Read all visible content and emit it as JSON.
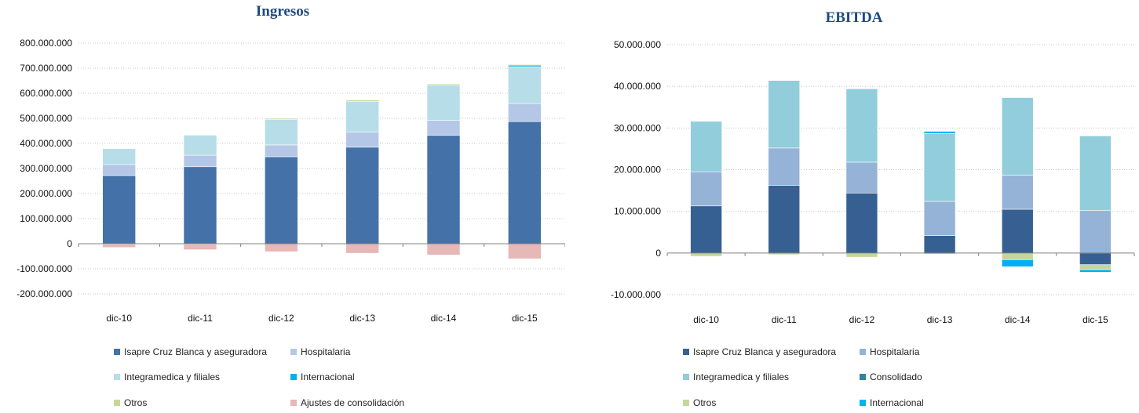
{
  "chart_data": [
    {
      "type": "bar",
      "stacked": true,
      "title": "Ingresos",
      "categories": [
        "dic-10",
        "dic-11",
        "dic-12",
        "dic-13",
        "dic-14",
        "dic-15"
      ],
      "ylim": [
        -200000000,
        800000000
      ],
      "yticks": [
        800000000,
        700000000,
        600000000,
        500000000,
        400000000,
        300000000,
        200000000,
        100000000,
        0,
        -100000000,
        -200000000
      ],
      "ytick_labels": [
        "800.000.000",
        "700.000.000",
        "600.000.000",
        "500.000.000",
        "400.000.000",
        "300.000.000",
        "200.000.000",
        "100.000.000",
        "0",
        "-100.000.000",
        "-200.000.000"
      ],
      "grid": true,
      "legend_position": "bottom",
      "series": [
        {
          "name": "Isapre Cruz Blanca y aseguradora",
          "color": "#4472a8",
          "values": [
            272000000,
            307000000,
            347000000,
            385000000,
            432000000,
            487000000
          ]
        },
        {
          "name": "Hospitalaria",
          "color": "#b4c7e7",
          "values": [
            44000000,
            46000000,
            47000000,
            60000000,
            60000000,
            72000000
          ]
        },
        {
          "name": "Integramedica y filiales",
          "color": "#b7dde8",
          "values": [
            63000000,
            80000000,
            102000000,
            123000000,
            140000000,
            147000000
          ]
        },
        {
          "name": "Internacional",
          "color": "#00b0f0",
          "values": [
            0,
            0,
            0,
            0,
            0,
            6000000
          ]
        },
        {
          "name": "Otros",
          "color": "#c4d79b",
          "values": [
            -2000000,
            -2000000,
            4000000,
            5000000,
            5000000,
            3000000
          ]
        },
        {
          "name": "Ajustes de consolidación",
          "color": "#e6b8b7",
          "values": [
            -13000000,
            -22000000,
            -32000000,
            -38000000,
            -45000000,
            -60000000
          ]
        }
      ]
    },
    {
      "type": "bar",
      "stacked": true,
      "title": "EBITDA",
      "categories": [
        "dic-10",
        "dic-11",
        "dic-12",
        "dic-13",
        "dic-14",
        "dic-15"
      ],
      "ylim": [
        -10000000,
        50000000
      ],
      "yticks": [
        50000000,
        40000000,
        30000000,
        20000000,
        10000000,
        0,
        -10000000
      ],
      "ytick_labels": [
        "50.000.000",
        "40.000.000",
        "30.000.000",
        "20.000.000",
        "10.000.000",
        "0",
        "-10.000.000"
      ],
      "grid": true,
      "legend_position": "bottom",
      "series": [
        {
          "name": "Isapre Cruz Blanca y aseguradora",
          "color": "#376092",
          "values": [
            11300000,
            16200000,
            14400000,
            4200000,
            10500000,
            -2800000
          ]
        },
        {
          "name": "Hospitalaria",
          "color": "#95b3d7",
          "values": [
            8200000,
            9000000,
            7400000,
            8200000,
            8200000,
            10200000
          ]
        },
        {
          "name": "Integramedica y filiales",
          "color": "#92cddc",
          "values": [
            12100000,
            16200000,
            17600000,
            16300000,
            18600000,
            17900000
          ]
        },
        {
          "name": "Consolidado",
          "color": "#31849b",
          "values": [
            0,
            0,
            0,
            0,
            0,
            0
          ]
        },
        {
          "name": "Otros",
          "color": "#c4d79b",
          "values": [
            -800000,
            -400000,
            -1000000,
            -300000,
            -1600000,
            -1200000
          ]
        },
        {
          "name": "Internacional",
          "color": "#00b0f0",
          "values": [
            0,
            0,
            0,
            500000,
            -1700000,
            -600000
          ]
        }
      ]
    }
  ]
}
